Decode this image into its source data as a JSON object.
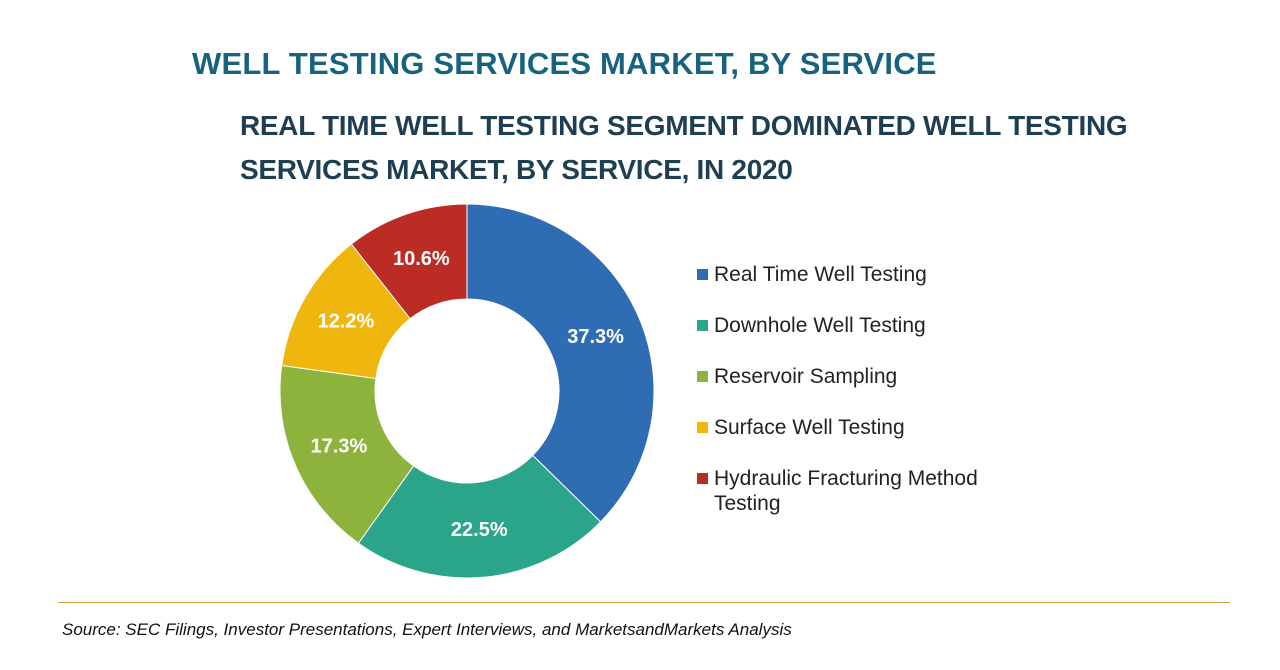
{
  "header": {
    "title": "WELL TESTING SERVICES MARKET, BY SERVICE",
    "subtitle": "REAL TIME WELL TESTING SEGMENT DOMINATED WELL TESTING SERVICES MARKET, BY SERVICE, IN 2020"
  },
  "chart_data": {
    "type": "pie",
    "variant": "donut",
    "title": "WELL TESTING SERVICES MARKET, BY SERVICE",
    "subtitle": "REAL TIME WELL TESTING SEGMENT DOMINATED WELL TESTING SERVICES MARKET, BY SERVICE, IN 2020",
    "categories": [
      "Real Time Well Testing",
      "Downhole Well Testing",
      "Reservoir Sampling",
      "Surface Well Testing",
      "Hydraulic Fracturing Method Testing"
    ],
    "values": [
      37.3,
      22.5,
      17.3,
      12.2,
      10.6
    ],
    "labels": [
      "37.3%",
      "22.5%",
      "17.3%",
      "12.2%",
      "10.6%"
    ],
    "unit": "%",
    "colors": [
      "#2e6db4",
      "#2aa58a",
      "#8db33c",
      "#efb60e",
      "#bb2c24"
    ],
    "legend_position": "right"
  },
  "footer": {
    "source": "Source: SEC Filings, Investor Presentations, Expert Interviews, and MarketsandMarkets Analysis"
  }
}
